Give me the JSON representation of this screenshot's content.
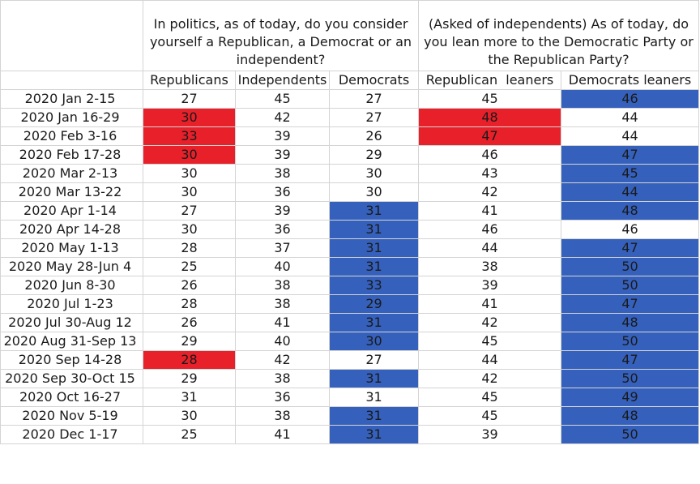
{
  "questions": {
    "party_id": "In politics, as of today, do you consider yourself a Republican, a Democrat or an independent?",
    "leaners": "(Asked of independents) As of today, do you lean more to the Democratic Party or the Republican Party?"
  },
  "columns": [
    "Republicans",
    "Independents",
    "Democrats",
    "Republican  leaners",
    "Democrats leaners"
  ],
  "colors": {
    "red": "#e8202a",
    "blue": "#3561bd",
    "grid": "#d4d4d4"
  },
  "rows": [
    {
      "date": "2020 Jan 2-15",
      "values": [
        "27",
        "45",
        "27",
        "45",
        "46"
      ],
      "highlight": [
        "",
        "",
        "",
        "",
        "blue"
      ]
    },
    {
      "date": "2020 Jan 16-29",
      "values": [
        "30",
        "42",
        "27",
        "48",
        "44"
      ],
      "highlight": [
        "red",
        "",
        "",
        "red",
        ""
      ]
    },
    {
      "date": "2020 Feb 3-16",
      "values": [
        "33",
        "39",
        "26",
        "47",
        "44"
      ],
      "highlight": [
        "red",
        "",
        "",
        "red",
        ""
      ]
    },
    {
      "date": "2020 Feb 17-28",
      "values": [
        "30",
        "39",
        "29",
        "46",
        "47"
      ],
      "highlight": [
        "red",
        "",
        "",
        "",
        "blue"
      ]
    },
    {
      "date": "2020 Mar 2-13",
      "values": [
        "30",
        "38",
        "30",
        "43",
        "45"
      ],
      "highlight": [
        "",
        "",
        "",
        "",
        "blue"
      ]
    },
    {
      "date": "2020 Mar 13-22",
      "values": [
        "30",
        "36",
        "30",
        "42",
        "44"
      ],
      "highlight": [
        "",
        "",
        "",
        "",
        "blue"
      ]
    },
    {
      "date": "2020 Apr 1-14",
      "values": [
        "27",
        "39",
        "31",
        "41",
        "48"
      ],
      "highlight": [
        "",
        "",
        "blue",
        "",
        "blue"
      ]
    },
    {
      "date": "2020 Apr 14-28",
      "values": [
        "30",
        "36",
        "31",
        "46",
        "46"
      ],
      "highlight": [
        "",
        "",
        "blue",
        "",
        ""
      ]
    },
    {
      "date": "2020 May 1-13",
      "values": [
        "28",
        "37",
        "31",
        "44",
        "47"
      ],
      "highlight": [
        "",
        "",
        "blue",
        "",
        "blue"
      ]
    },
    {
      "date": "2020 May 28-Jun 4",
      "values": [
        "25",
        "40",
        "31",
        "38",
        "50"
      ],
      "highlight": [
        "",
        "",
        "blue",
        "",
        "blue"
      ]
    },
    {
      "date": "2020 Jun 8-30",
      "values": [
        "26",
        "38",
        "33",
        "39",
        "50"
      ],
      "highlight": [
        "",
        "",
        "blue",
        "",
        "blue"
      ]
    },
    {
      "date": "2020 Jul 1-23",
      "values": [
        "28",
        "38",
        "29",
        "41",
        "47"
      ],
      "highlight": [
        "",
        "",
        "blue",
        "",
        "blue"
      ]
    },
    {
      "date": "2020 Jul 30-Aug 12",
      "values": [
        "26",
        "41",
        "31",
        "42",
        "48"
      ],
      "highlight": [
        "",
        "",
        "blue",
        "",
        "blue"
      ]
    },
    {
      "date": "2020 Aug 31-Sep 13",
      "values": [
        "29",
        "40",
        "30",
        "45",
        "50"
      ],
      "highlight": [
        "",
        "",
        "blue",
        "",
        "blue"
      ]
    },
    {
      "date": "2020 Sep 14-28",
      "values": [
        "28",
        "42",
        "27",
        "44",
        "47"
      ],
      "highlight": [
        "red",
        "",
        "",
        "",
        "blue"
      ]
    },
    {
      "date": "2020 Sep 30-Oct 15",
      "values": [
        "29",
        "38",
        "31",
        "42",
        "50"
      ],
      "highlight": [
        "",
        "",
        "blue",
        "",
        "blue"
      ]
    },
    {
      "date": "2020 Oct 16-27",
      "values": [
        "31",
        "36",
        "31",
        "45",
        "49"
      ],
      "highlight": [
        "",
        "",
        "",
        "",
        "blue"
      ]
    },
    {
      "date": "2020 Nov 5-19",
      "values": [
        "30",
        "38",
        "31",
        "45",
        "48"
      ],
      "highlight": [
        "",
        "",
        "blue",
        "",
        "blue"
      ]
    },
    {
      "date": "2020 Dec 1-17",
      "values": [
        "25",
        "41",
        "31",
        "39",
        "50"
      ],
      "highlight": [
        "",
        "",
        "blue",
        "",
        "blue"
      ]
    }
  ]
}
